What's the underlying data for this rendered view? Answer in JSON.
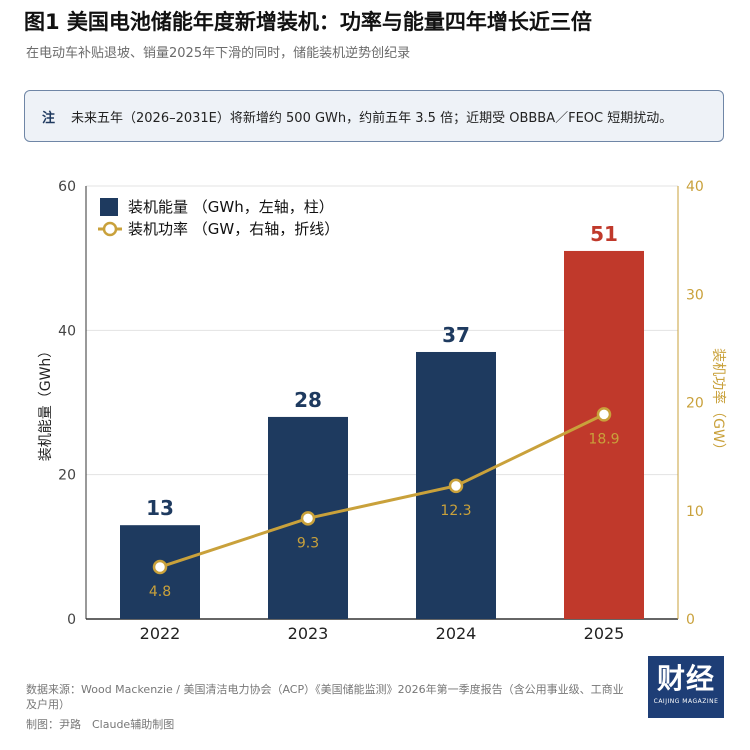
{
  "header": {
    "title": "图1  美国电池储能年度新增装机：功率与能量四年增长近三倍",
    "subtitle": "在电动车补贴退坡、销量2025年下滑的同时，储能装机逆势创纪录"
  },
  "note": {
    "label": "注",
    "text": "未来五年（2026–2031E）将新增约 500 GWh，约前五年 3.5 倍；近期受 OBBBA／FEOC 短期扰动。"
  },
  "chart_data": {
    "type": "bar",
    "categories": [
      "2022",
      "2023",
      "2024",
      "2025"
    ],
    "series": [
      {
        "name": "装机能量 （GWh，左轴，柱）",
        "type": "bar",
        "axis": "left",
        "values": [
          13,
          28,
          37,
          51
        ],
        "labels": [
          "13",
          "28",
          "37",
          "51"
        ],
        "colors": [
          "#1e3a5f",
          "#1e3a5f",
          "#1e3a5f",
          "#c0392b"
        ]
      },
      {
        "name": "装机功率 （GW，右轴，折线）",
        "type": "line",
        "axis": "right",
        "values": [
          4.8,
          9.3,
          12.3,
          18.9
        ],
        "labels": [
          "4.8",
          "9.3",
          "12.3",
          "18.9"
        ],
        "color": "#c9a13b"
      }
    ],
    "ylabel": "装机能量（GWh）",
    "y2label": "装机功率（GW）",
    "ylim": [
      0,
      60
    ],
    "y2lim": [
      0,
      40
    ],
    "yticks": [
      0,
      20,
      40,
      60
    ],
    "y2ticks": [
      0,
      10,
      20,
      30,
      40
    ],
    "grid": true,
    "legend": "top-left"
  },
  "footer": {
    "source": "数据来源：Wood Mackenzie / 美国清洁电力协会（ACP）《美国储能监测》2026年第一季度报告（含公用事业级、工商业及户用）",
    "credit": "制图：尹路　Claude辅助制图",
    "logo_text": "财经",
    "logo_sub": "CAIJING MAGAZINE"
  }
}
